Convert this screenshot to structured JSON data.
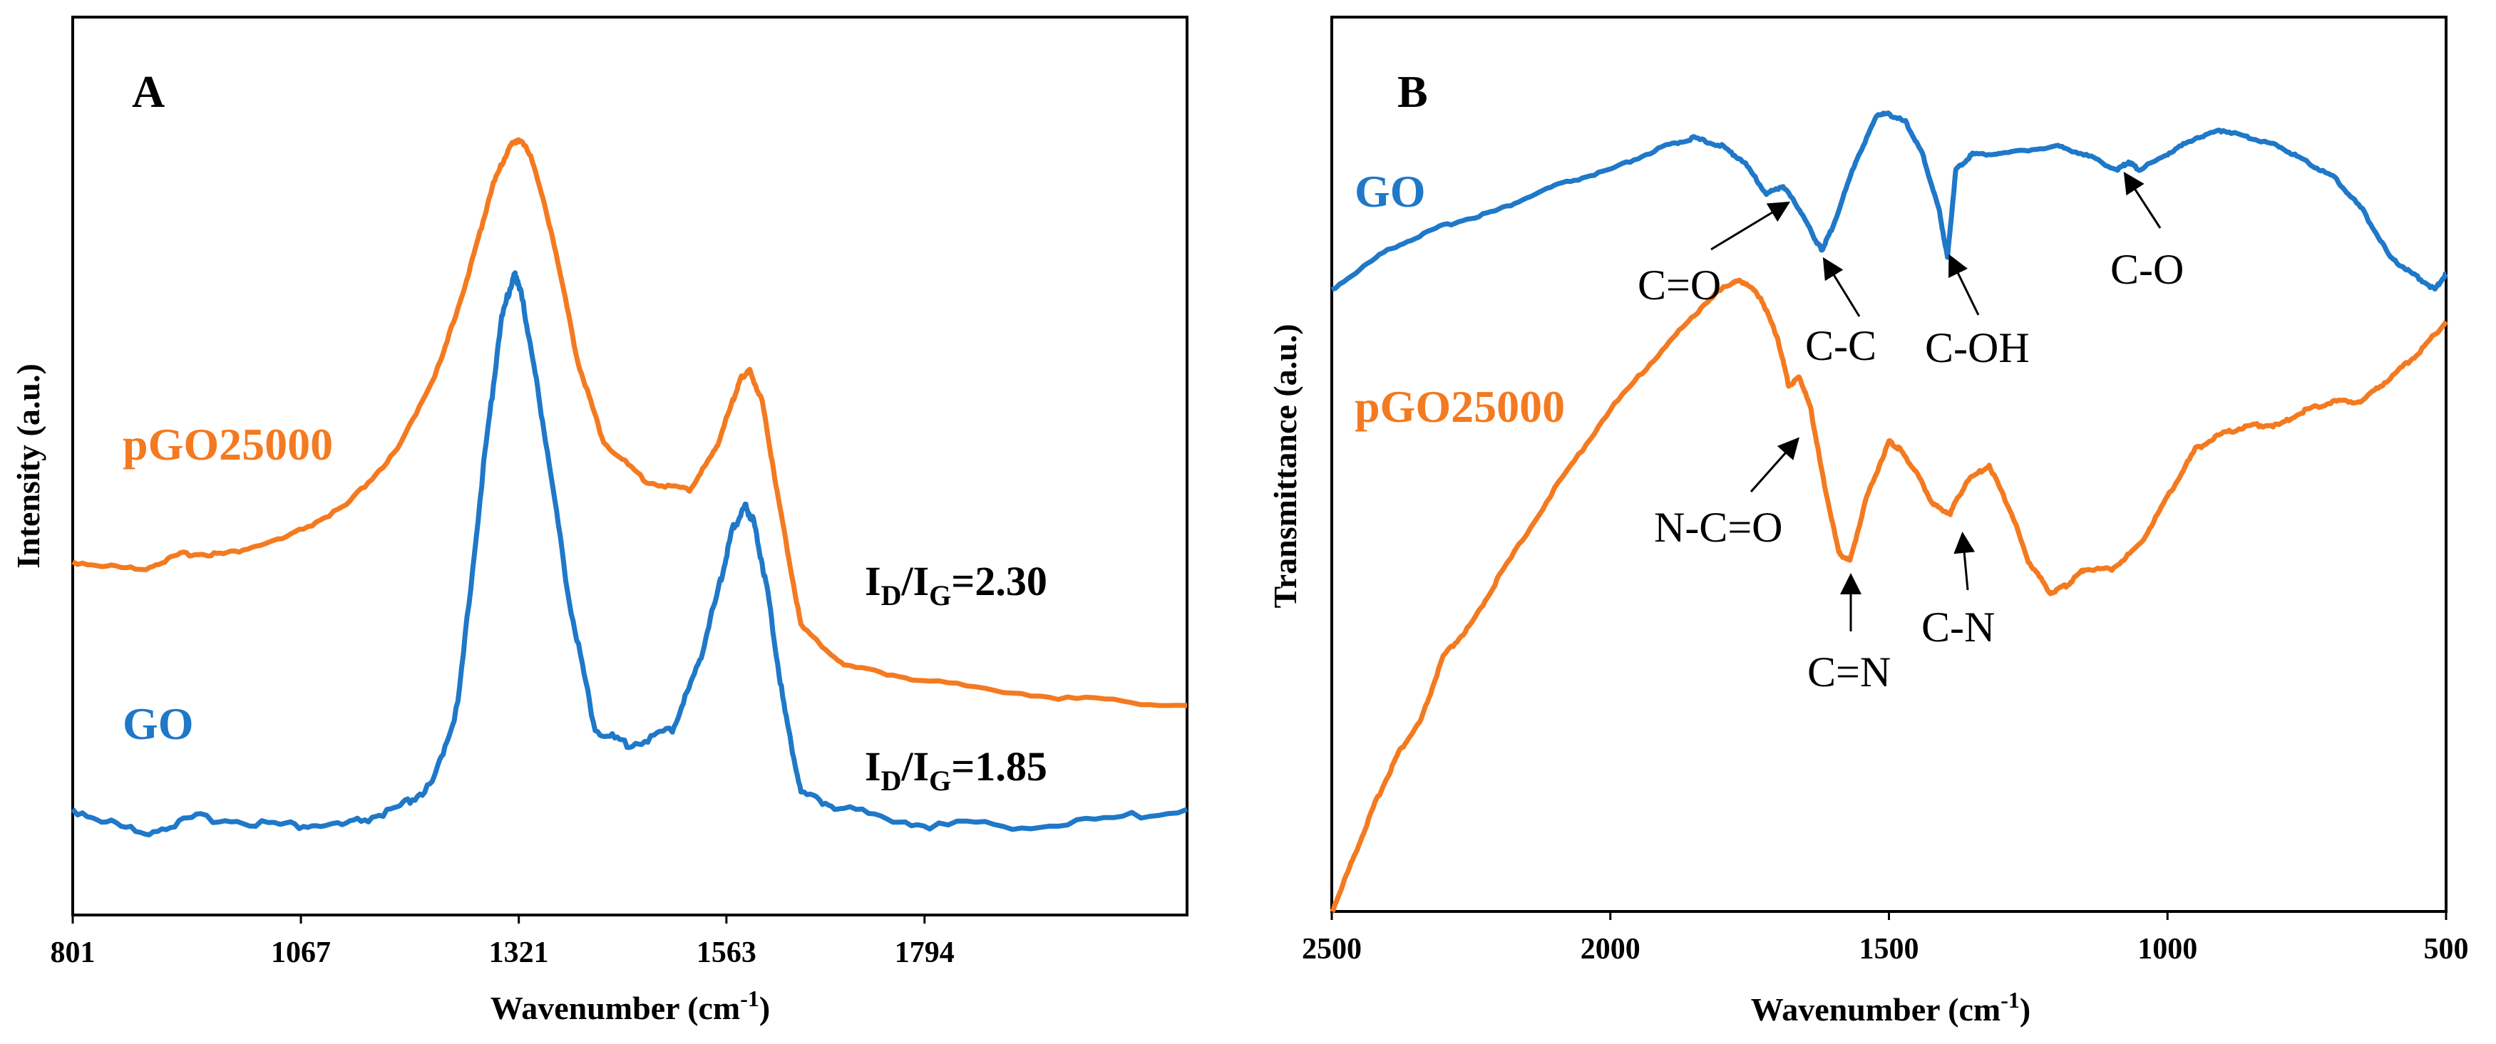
{
  "chart_data": [
    {
      "panel": "A",
      "type": "line",
      "title": "",
      "xlabel": "Wavenumber (cm",
      "xlabel_sup": "-1",
      "xlabel_tail": ")",
      "ylabel": "Intensity (a.u.)",
      "xlim": [
        801,
        2100
      ],
      "ylim": [
        0,
        1
      ],
      "x_ticks": [
        801,
        1067,
        1321,
        1563,
        1794
      ],
      "tick_labels": [
        "801",
        "1067",
        "1321",
        "1563",
        "1794"
      ],
      "grid": false,
      "series": [
        {
          "name": "pGO25000",
          "color": "#F47A20",
          "x": [
            801,
            880,
            930,
            980,
            1050,
            1120,
            1180,
            1230,
            1265,
            1290,
            1310,
            1321,
            1335,
            1360,
            1390,
            1420,
            1470,
            1520,
            1550,
            1570,
            1580,
            1590,
            1605,
            1625,
            1650,
            1700,
            1800,
            1950,
            2100
          ],
          "y": [
            0.43,
            0.42,
            0.44,
            0.44,
            0.46,
            0.5,
            0.57,
            0.68,
            0.8,
            0.9,
            0.95,
            0.96,
            0.94,
            0.84,
            0.68,
            0.58,
            0.53,
            0.52,
            0.57,
            0.63,
            0.66,
            0.67,
            0.63,
            0.5,
            0.35,
            0.3,
            0.28,
            0.26,
            0.25
          ]
        },
        {
          "name": "GO",
          "color": "#1F78C8",
          "x": [
            801,
            880,
            950,
            1050,
            1120,
            1180,
            1220,
            1250,
            1280,
            1300,
            1315,
            1321,
            1330,
            1350,
            1380,
            1410,
            1450,
            1500,
            1530,
            1555,
            1570,
            1585,
            1595,
            1610,
            1630,
            1650,
            1700,
            1800,
            1950,
            2100
          ],
          "y": [
            0.12,
            0.09,
            0.11,
            0.1,
            0.1,
            0.12,
            0.15,
            0.25,
            0.55,
            0.73,
            0.79,
            0.78,
            0.73,
            0.6,
            0.38,
            0.22,
            0.2,
            0.22,
            0.3,
            0.4,
            0.47,
            0.5,
            0.48,
            0.4,
            0.25,
            0.14,
            0.12,
            0.1,
            0.1,
            0.12
          ]
        }
      ],
      "series_labels": {
        "pGO25000": "pGO25000",
        "GO": "GO"
      },
      "annotations": [
        {
          "name": "pgo-ratio",
          "main": "I",
          "sub1": "D",
          "mid": "/I",
          "sub2": "G",
          "tail": "=2.30"
        },
        {
          "name": "go-ratio",
          "main": "I",
          "sub1": "D",
          "mid": "/I",
          "sub2": "G",
          "tail": "=1.85"
        }
      ]
    },
    {
      "panel": "B",
      "type": "line",
      "title": "",
      "xlabel": "Wavenumber (cm",
      "xlabel_sup": "-1",
      "xlabel_tail": ")",
      "ylabel": "Transmittance (a.u.)",
      "xlim": [
        2500,
        500
      ],
      "ylim": [
        0,
        1
      ],
      "x_ticks": [
        2500,
        2000,
        1500,
        1000,
        500
      ],
      "tick_labels": [
        "2500",
        "2000",
        "1500",
        "1000",
        "500"
      ],
      "grid": false,
      "series": [
        {
          "name": "GO",
          "color": "#1F78C8",
          "x": [
            2500,
            2400,
            2300,
            2200,
            2100,
            2000,
            1900,
            1850,
            1800,
            1760,
            1720,
            1690,
            1660,
            1630,
            1620,
            1600,
            1560,
            1520,
            1500,
            1470,
            1440,
            1410,
            1395,
            1380,
            1350,
            1300,
            1200,
            1150,
            1090,
            1070,
            1050,
            1000,
            950,
            900,
            850,
            800,
            750,
            700,
            650,
            600,
            560,
            520,
            500
          ],
          "y": [
            0.78,
            0.83,
            0.86,
            0.88,
            0.91,
            0.93,
            0.96,
            0.97,
            0.96,
            0.94,
            0.9,
            0.91,
            0.88,
            0.84,
            0.83,
            0.86,
            0.94,
            1.0,
            1.0,
            0.99,
            0.95,
            0.88,
            0.82,
            0.93,
            0.95,
            0.95,
            0.96,
            0.95,
            0.93,
            0.94,
            0.93,
            0.95,
            0.97,
            0.98,
            0.97,
            0.96,
            0.94,
            0.92,
            0.88,
            0.82,
            0.8,
            0.78,
            0.8
          ]
        },
        {
          "name": "pGO25000",
          "color": "#F47A20",
          "x": [
            2500,
            2460,
            2420,
            2380,
            2340,
            2300,
            2250,
            2200,
            2100,
            2000,
            1900,
            1820,
            1780,
            1760,
            1730,
            1700,
            1680,
            1660,
            1640,
            1620,
            1590,
            1570,
            1540,
            1500,
            1480,
            1450,
            1420,
            1390,
            1360,
            1320,
            1280,
            1250,
            1210,
            1180,
            1150,
            1100,
            1050,
            1000,
            950,
            900,
            850,
            800,
            750,
            700,
            650,
            600,
            550,
            500
          ],
          "y": [
            0.0,
            0.07,
            0.14,
            0.2,
            0.24,
            0.32,
            0.36,
            0.42,
            0.53,
            0.63,
            0.71,
            0.77,
            0.79,
            0.79,
            0.77,
            0.72,
            0.66,
            0.67,
            0.63,
            0.55,
            0.45,
            0.44,
            0.52,
            0.59,
            0.58,
            0.55,
            0.51,
            0.5,
            0.54,
            0.56,
            0.5,
            0.44,
            0.4,
            0.41,
            0.43,
            0.43,
            0.46,
            0.52,
            0.58,
            0.6,
            0.61,
            0.61,
            0.63,
            0.64,
            0.64,
            0.67,
            0.7,
            0.74
          ]
        }
      ],
      "series_labels": {
        "GO": "GO",
        "pGO25000": "pGO25000"
      },
      "annotations": [
        {
          "name": "c-eq-o",
          "text": "C=O",
          "at_x": 1720
        },
        {
          "name": "c-c",
          "text": "C-C",
          "at_x": 1620
        },
        {
          "name": "c-oh",
          "text": "C-OH",
          "at_x": 1395
        },
        {
          "name": "c-o",
          "text": "C-O",
          "at_x": 1070
        },
        {
          "name": "n-c-eq-o",
          "text": "N-C=O",
          "at_x": 1650
        },
        {
          "name": "c-eq-n",
          "text": "C=N",
          "at_x": 1570
        },
        {
          "name": "c-n",
          "text": "C-N",
          "at_x": 1390
        }
      ]
    }
  ]
}
